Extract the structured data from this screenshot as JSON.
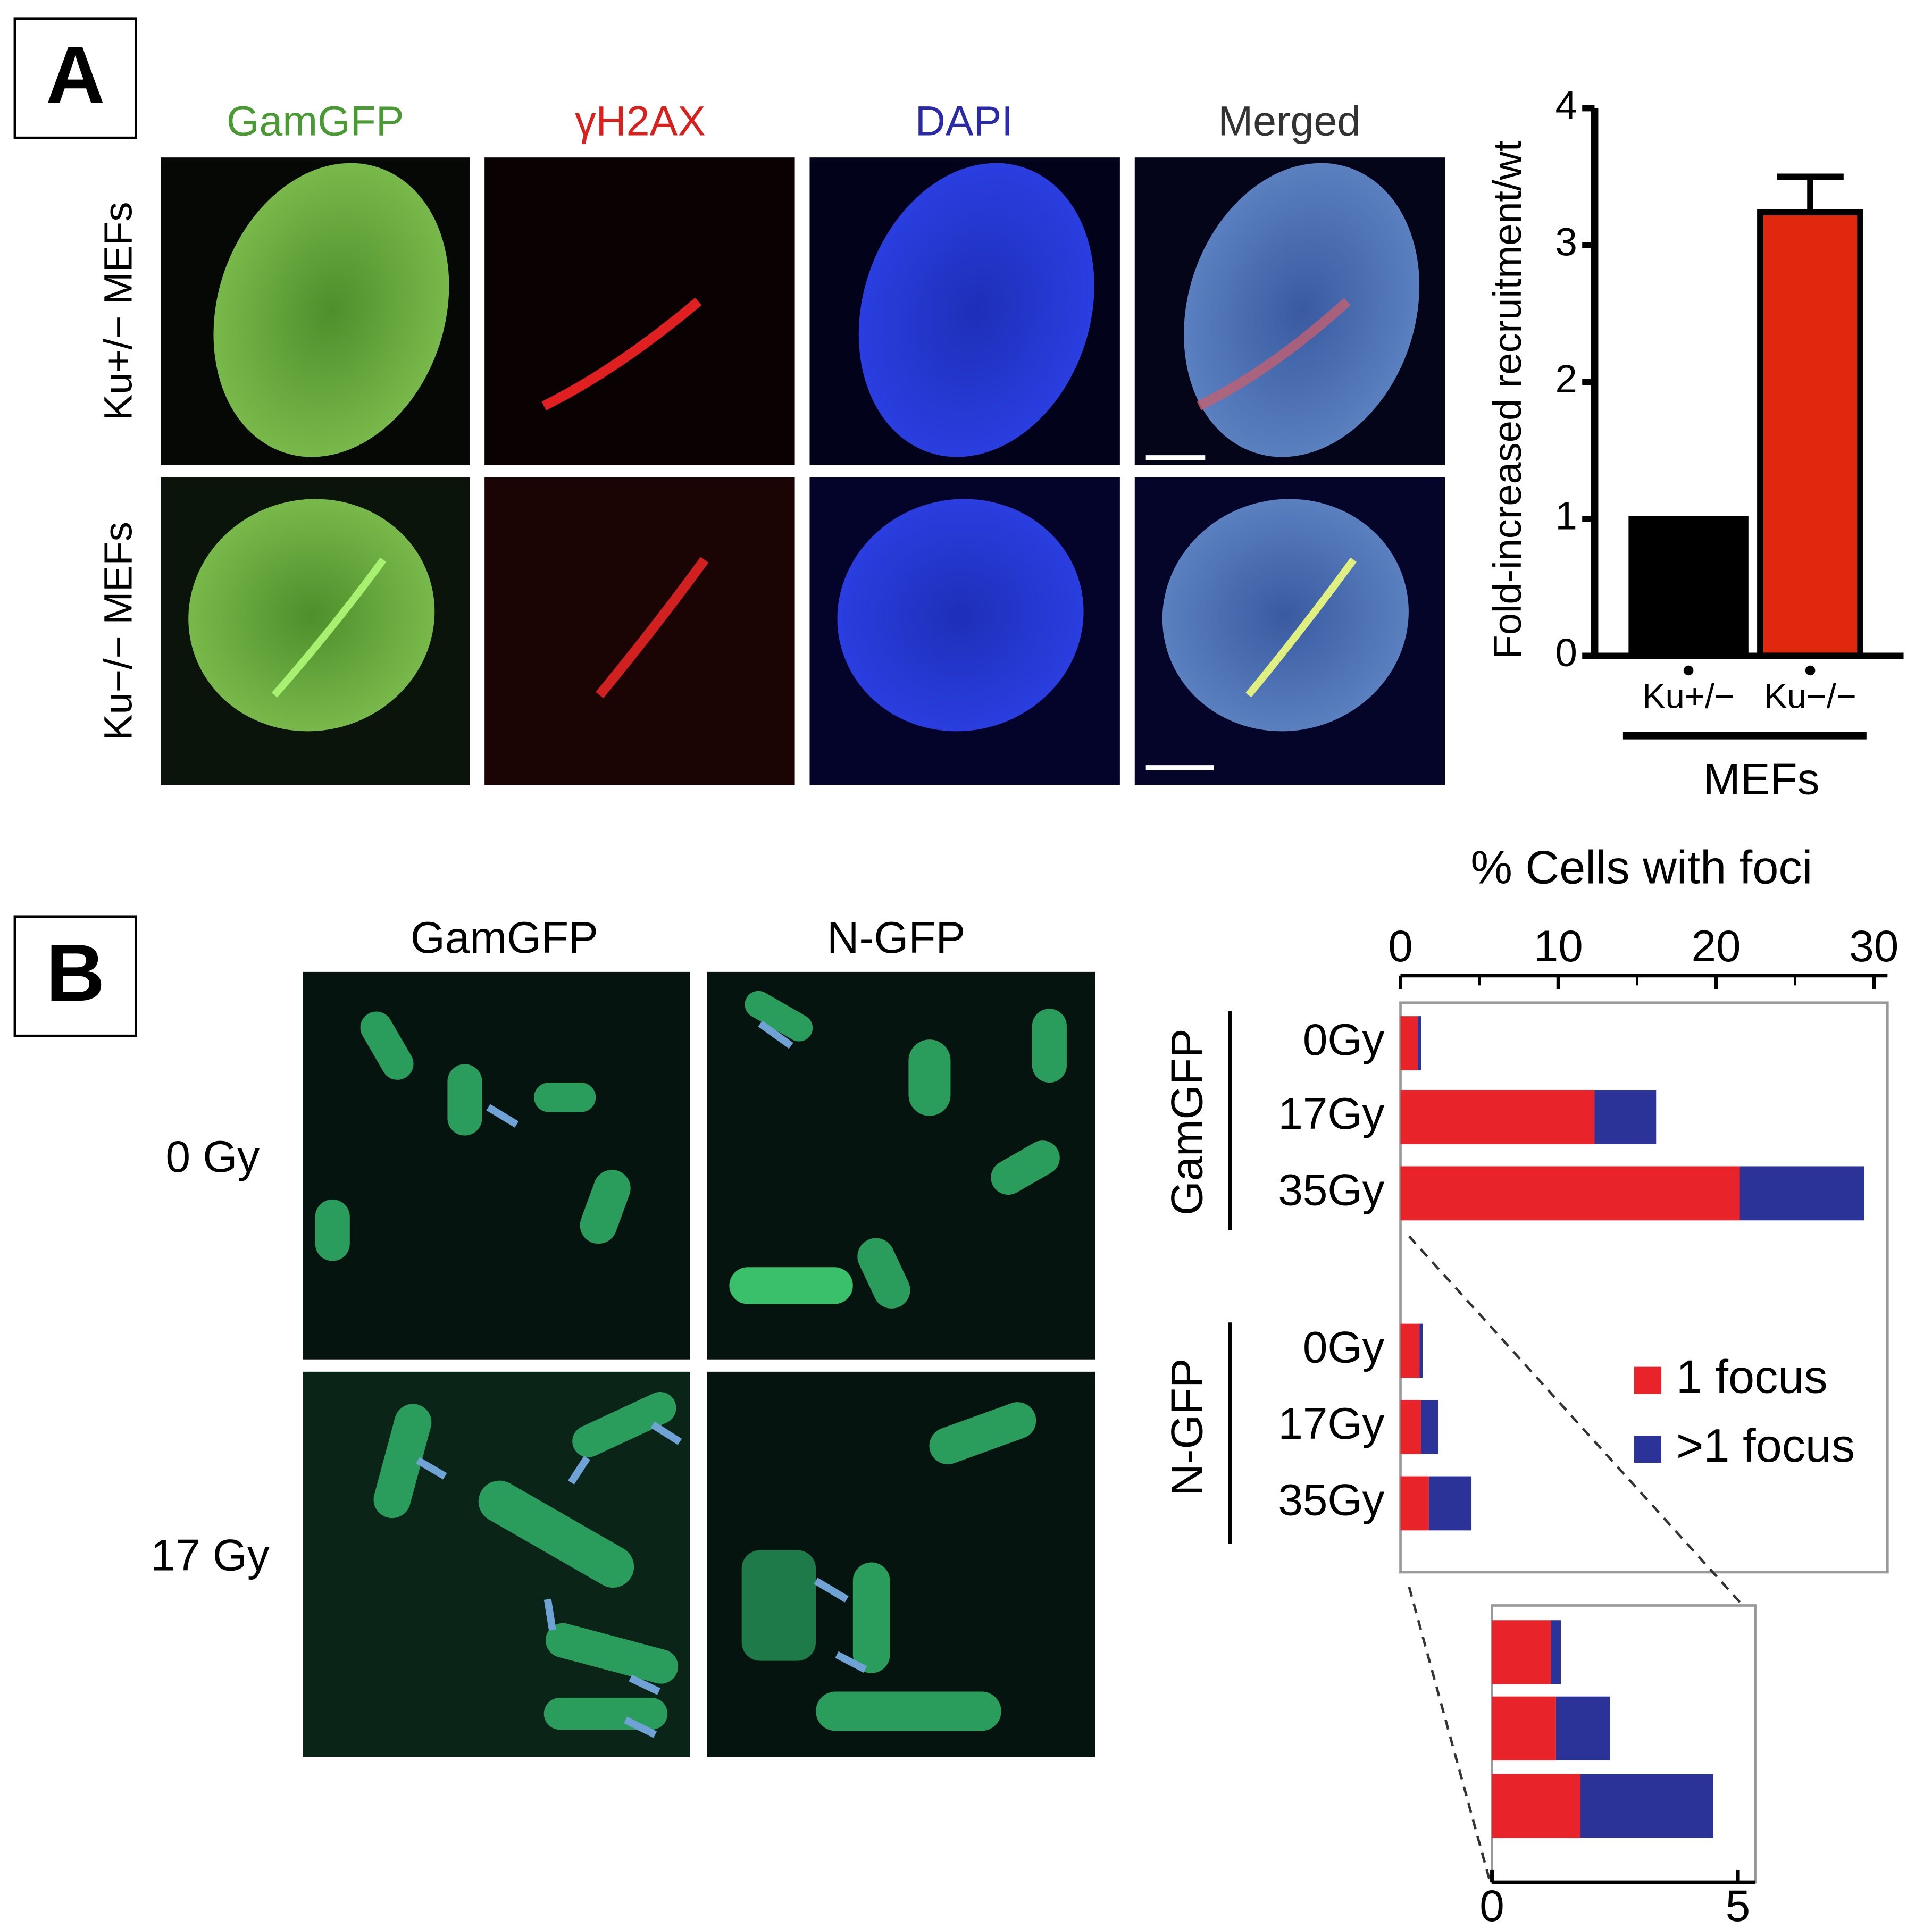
{
  "panel_a": {
    "label": "A",
    "columns": [
      "GamGFP",
      "γH2AX",
      "DAPI",
      "Merged"
    ],
    "rows": [
      "Ku+/− MEFs",
      "Ku−/− MEFs"
    ]
  },
  "panel_b": {
    "label": "B",
    "columns": [
      "GamGFP",
      "N-GFP"
    ],
    "rows": [
      "0 Gy",
      "17 Gy"
    ]
  },
  "chart_data": [
    {
      "type": "bar",
      "ylabel": "Fold-increased recruitment/wt",
      "xlabel": "MEFs",
      "categories": [
        "Ku+/−",
        "Ku−/−"
      ],
      "values": [
        1,
        3.24
      ],
      "errors": [
        null,
        0.26
      ],
      "colors": [
        "#000000",
        "#e0280f"
      ],
      "ylim": [
        0,
        4
      ],
      "yticks": [
        0,
        1,
        2,
        3,
        4
      ]
    },
    {
      "type": "hbar-stacked",
      "title": "% Cells with foci",
      "groups": [
        "GamGFP",
        "N-GFP"
      ],
      "categories": [
        [
          "0Gy",
          "17Gy",
          "35Gy"
        ],
        [
          "0Gy",
          "17Gy",
          "35Gy"
        ]
      ],
      "series": [
        {
          "name": "1 focus",
          "color": "#e8232a",
          "values": [
            [
              1.1,
              12.3,
              21.5
            ],
            [
              1.2,
              1.3,
              1.8
            ]
          ]
        },
        {
          "name": ">1 focus",
          "color": "#2b3398",
          "values": [
            [
              0.2,
              3.9,
              7.9
            ],
            [
              0.2,
              1.1,
              2.7
            ]
          ]
        }
      ],
      "xlim": [
        0,
        30
      ],
      "xticks": [
        0,
        10,
        20,
        30
      ],
      "minor_xticks": [
        5,
        15,
        25
      ],
      "inset": {
        "xlim": [
          0,
          5
        ],
        "xticks": [
          0,
          5
        ]
      }
    }
  ]
}
